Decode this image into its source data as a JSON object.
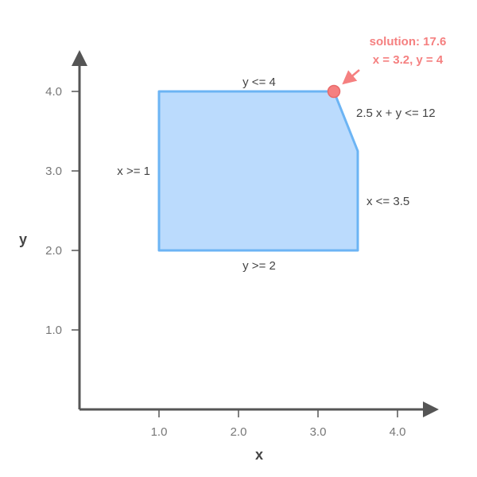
{
  "chart_data": {
    "type": "diagram",
    "xlabel": "x",
    "ylabel": "y",
    "xlim": [
      0,
      4.5
    ],
    "ylim": [
      0,
      4.5
    ],
    "x_ticks": [
      {
        "value": 1,
        "label": "1.0"
      },
      {
        "value": 2,
        "label": "2.0"
      },
      {
        "value": 3,
        "label": "3.0"
      },
      {
        "value": 4,
        "label": "4.0"
      }
    ],
    "y_ticks": [
      {
        "value": 1,
        "label": "1.0"
      },
      {
        "value": 2,
        "label": "2.0"
      },
      {
        "value": 3,
        "label": "3.0"
      },
      {
        "value": 4,
        "label": "4.0"
      }
    ],
    "feasible_region": {
      "vertices": [
        {
          "x": 1,
          "y": 2
        },
        {
          "x": 3.5,
          "y": 2
        },
        {
          "x": 3.5,
          "y": 3.25
        },
        {
          "x": 3.2,
          "y": 4
        },
        {
          "x": 1,
          "y": 4
        }
      ],
      "fill_color": "#bbdbfd",
      "stroke_color": "#6cb4f4"
    },
    "constraints": [
      {
        "label": "y <= 4"
      },
      {
        "label": "2.5 x + y <= 12"
      },
      {
        "label": "x >= 1"
      },
      {
        "label": "x <= 3.5"
      },
      {
        "label": "y >= 2"
      }
    ],
    "solution": {
      "x": 3.2,
      "y": 4,
      "line1": "solution: 17.6",
      "line2": "x = 3.2, y = 4",
      "color": "#f58080"
    },
    "axis_color": "#555555"
  }
}
